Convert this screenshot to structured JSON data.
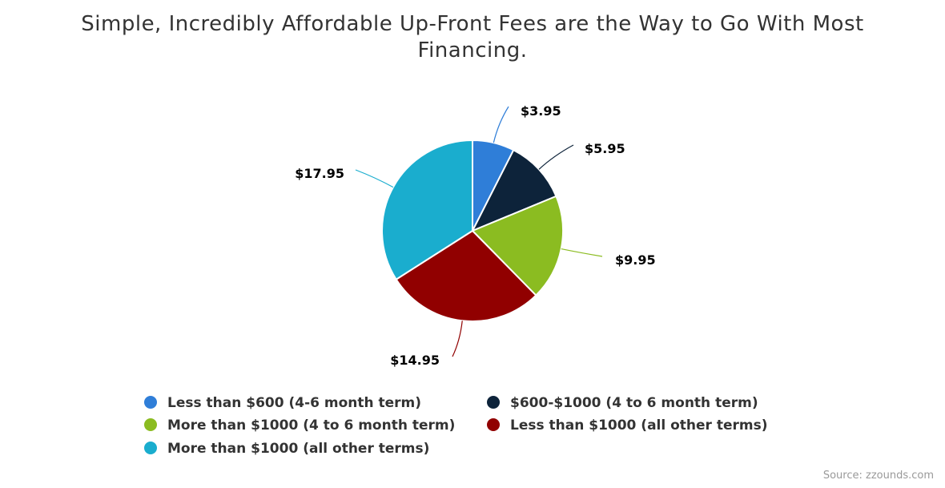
{
  "title": "Simple, Incredibly Affordable Up-Front Fees are the Way to Go With Most Financing.",
  "source": "Source: zzounds.com",
  "chart_data": {
    "type": "pie",
    "title": "Simple, Incredibly Affordable Up-Front Fees are the Way to Go With Most Financing.",
    "legend_position": "bottom",
    "slices": [
      {
        "name": "Less than $600 (4-6 month term)",
        "value": 3.95,
        "label": "$3.95",
        "color": "#2f7ed8"
      },
      {
        "name": "$600-$1000 (4 to 6 month term)",
        "value": 5.95,
        "label": "$5.95",
        "color": "#0d233a"
      },
      {
        "name": "More than $1000 (4 to 6 month term)",
        "value": 9.95,
        "label": "$9.95",
        "color": "#8bbc21"
      },
      {
        "name": "Less than $1000 (all other terms)",
        "value": 14.95,
        "label": "$14.95",
        "color": "#910000"
      },
      {
        "name": "More than $1000 (all other terms)",
        "value": 17.95,
        "label": "$17.95",
        "color": "#1aadce"
      }
    ]
  }
}
